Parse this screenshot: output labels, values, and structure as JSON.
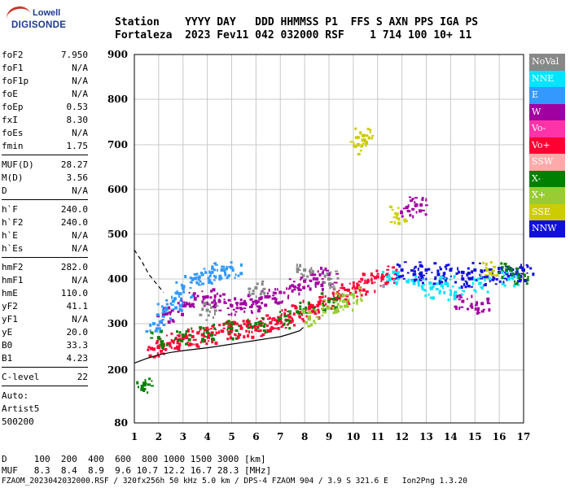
{
  "logo": {
    "line1": "Lowell",
    "line2": "DIGISONDE"
  },
  "header": {
    "labels": "Station    YYYY DAY   DDD HHMMSS P1  FFS S AXN PPS IGA PS",
    "values": "Fortaleza  2023 Fev11 042 032000 RSF    1 714 100 10+ 11"
  },
  "params": [
    [
      {
        "label": "foF2",
        "value": "7.950"
      },
      {
        "label": "foF1",
        "value": "N/A"
      },
      {
        "label": "foF1p",
        "value": "N/A"
      },
      {
        "label": "foE",
        "value": "N/A"
      },
      {
        "label": "foEp",
        "value": "0.53"
      },
      {
        "label": "fxI",
        "value": "8.30"
      },
      {
        "label": "foEs",
        "value": "N/A"
      },
      {
        "label": "fmin",
        "value": "1.75"
      }
    ],
    [
      {
        "label": "MUF(D)",
        "value": "28.27"
      },
      {
        "label": "M(D)",
        "value": "3.56"
      },
      {
        "label": "D",
        "value": "N/A"
      }
    ],
    [
      {
        "label": "h`F",
        "value": "240.0"
      },
      {
        "label": "h`F2",
        "value": "240.0"
      },
      {
        "label": "h`E",
        "value": "N/A"
      },
      {
        "label": "h`Es",
        "value": "N/A"
      }
    ],
    [
      {
        "label": "hmF2",
        "value": "282.0"
      },
      {
        "label": "hmF1",
        "value": "N/A"
      },
      {
        "label": "hmE",
        "value": "110.0"
      },
      {
        "label": "yF2",
        "value": "41.1"
      },
      {
        "label": "yF1",
        "value": "N/A"
      },
      {
        "label": "yE",
        "value": "20.0"
      },
      {
        "label": "B0",
        "value": "33.3"
      },
      {
        "label": "B1",
        "value": "4.23"
      }
    ],
    [
      {
        "label": "C-level",
        "value": "22"
      }
    ]
  ],
  "auto": {
    "line1": "Auto:",
    "line2": "Artist5",
    "line3": "500200"
  },
  "legend": [
    {
      "name": "NoVal",
      "color": "#888888"
    },
    {
      "name": "NNE",
      "color": "#00e5ff"
    },
    {
      "name": "E",
      "color": "#3399ff"
    },
    {
      "name": "W",
      "color": "#a000a0"
    },
    {
      "name": "Vo-",
      "color": "#ff33a8"
    },
    {
      "name": "Vo+",
      "color": "#ff0033"
    },
    {
      "name": "SSW",
      "color": "#ffaaaa"
    },
    {
      "name": "X-",
      "color": "#008000"
    },
    {
      "name": "X+",
      "color": "#99cc33"
    },
    {
      "name": "SSE",
      "color": "#cccc00"
    },
    {
      "name": "NNW",
      "color": "#1010dd"
    }
  ],
  "bottom": {
    "d_line": "D     100  200  400  600  800 1000 1500 3000 [km]",
    "muf_line": "MUF   8.3  8.4  8.9  9.6 10.7 12.2 16.7 28.3 [MHz]"
  },
  "footer": "FZAOM_2023042032000.RSF / 320fx256h 50 kHz 5.0 km / DPS-4 FZAOM 904 / 3.9 S 321.6 E   Ion2Png 1.3.20",
  "chart_data": {
    "type": "scatter",
    "title": "",
    "xlabel": "",
    "ylabel": "",
    "xlim": [
      1,
      17
    ],
    "ylim": [
      80,
      900
    ],
    "xticks": [
      1,
      2,
      3,
      4,
      5,
      6,
      7,
      8,
      9,
      10,
      11,
      12,
      13,
      14,
      15,
      16,
      17
    ],
    "yticks": [
      80,
      200,
      300,
      400,
      500,
      600,
      700,
      800,
      900
    ],
    "grid": true,
    "series": [
      {
        "name": "Vo+",
        "color": "#ff0033",
        "points": [
          [
            1.8,
            245
          ],
          [
            2.2,
            255
          ],
          [
            2.6,
            262
          ],
          [
            3.0,
            268
          ],
          [
            3.4,
            272
          ],
          [
            3.8,
            276
          ],
          [
            4.2,
            280
          ],
          [
            4.6,
            284
          ],
          [
            5.0,
            287
          ],
          [
            5.4,
            290
          ],
          [
            5.8,
            293
          ],
          [
            6.2,
            297
          ],
          [
            6.6,
            302
          ],
          [
            7.0,
            308
          ],
          [
            7.4,
            315
          ],
          [
            7.8,
            325
          ],
          [
            8.2,
            335
          ],
          [
            8.6,
            345
          ],
          [
            9.0,
            355
          ],
          [
            9.4,
            365
          ],
          [
            9.8,
            375
          ],
          [
            10.2,
            385
          ],
          [
            10.6,
            395
          ],
          [
            11.0,
            405
          ],
          [
            11.4,
            410
          ]
        ]
      },
      {
        "name": "W",
        "color": "#a000a0",
        "points": [
          [
            2.2,
            320
          ],
          [
            3.0,
            340
          ],
          [
            3.5,
            355
          ],
          [
            4.0,
            360
          ],
          [
            4.5,
            350
          ],
          [
            5.0,
            340
          ],
          [
            5.5,
            345
          ],
          [
            6.0,
            350
          ],
          [
            6.5,
            360
          ],
          [
            7.0,
            370
          ],
          [
            7.5,
            385
          ],
          [
            8.0,
            395
          ],
          [
            8.5,
            400
          ],
          [
            9.0,
            410
          ],
          [
            12.2,
            560
          ],
          [
            12.6,
            565
          ],
          [
            14.5,
            350
          ],
          [
            15.3,
            345
          ]
        ]
      },
      {
        "name": "E",
        "color": "#3399ff",
        "points": [
          [
            1.8,
            300
          ],
          [
            2.2,
            330
          ],
          [
            2.6,
            350
          ],
          [
            3.0,
            380
          ],
          [
            3.4,
            400
          ],
          [
            3.8,
            410
          ],
          [
            4.2,
            415
          ],
          [
            4.6,
            420
          ],
          [
            5.0,
            425
          ]
        ]
      },
      {
        "name": "NNW",
        "color": "#1010dd",
        "points": [
          [
            12.0,
            420
          ],
          [
            12.5,
            410
          ],
          [
            13.0,
            420
          ],
          [
            13.5,
            410
          ],
          [
            14.0,
            420
          ],
          [
            14.5,
            400
          ],
          [
            15.0,
            420
          ],
          [
            15.5,
            405
          ],
          [
            16.0,
            415
          ],
          [
            16.5,
            410
          ],
          [
            17.0,
            420
          ]
        ]
      },
      {
        "name": "NNE",
        "color": "#00e5ff",
        "points": [
          [
            11.5,
            400
          ],
          [
            12.5,
            390
          ],
          [
            13.2,
            380
          ],
          [
            13.8,
            390
          ],
          [
            14.2,
            370
          ],
          [
            15.2,
            390
          ],
          [
            16.4,
            400
          ]
        ]
      },
      {
        "name": "X-",
        "color": "#008000",
        "points": [
          [
            2.0,
            270
          ],
          [
            3.0,
            275
          ],
          [
            4.0,
            282
          ],
          [
            5.0,
            290
          ],
          [
            6.0,
            300
          ],
          [
            7.0,
            312
          ],
          [
            8.0,
            330
          ],
          [
            9.0,
            350
          ],
          [
            16.3,
            420
          ],
          [
            16.8,
            410
          ],
          [
            1.4,
            170
          ]
        ]
      },
      {
        "name": "X+",
        "color": "#99cc33",
        "points": [
          [
            8.2,
            315
          ],
          [
            9.0,
            335
          ],
          [
            9.6,
            350
          ],
          [
            10.0,
            365
          ]
        ]
      },
      {
        "name": "SSE",
        "color": "#cccc00",
        "points": [
          [
            10.2,
            700
          ],
          [
            10.4,
            720
          ],
          [
            11.8,
            545
          ],
          [
            15.5,
            420
          ]
        ]
      },
      {
        "name": "NoVal",
        "color": "#888888",
        "points": [
          [
            4.0,
            330
          ],
          [
            6.0,
            380
          ],
          [
            8.0,
            420
          ],
          [
            9.0,
            400
          ]
        ]
      }
    ],
    "fitted_profile": {
      "points": [
        [
          1.0,
          215
        ],
        [
          1.5,
          225
        ],
        [
          2.0,
          233
        ],
        [
          2.5,
          238
        ],
        [
          3.0,
          242
        ],
        [
          3.5,
          245
        ],
        [
          4.0,
          248
        ],
        [
          4.5,
          252
        ],
        [
          5.0,
          256
        ],
        [
          5.5,
          260
        ],
        [
          6.0,
          264
        ],
        [
          6.5,
          268
        ],
        [
          7.0,
          272
        ],
        [
          7.4,
          278
        ],
        [
          7.8,
          285
        ],
        [
          7.95,
          292
        ]
      ]
    },
    "extrapolated_profile": {
      "points": [
        [
          1.0,
          465
        ],
        [
          1.3,
          440
        ],
        [
          1.6,
          410
        ],
        [
          1.9,
          390
        ],
        [
          2.2,
          370
        ]
      ]
    }
  }
}
